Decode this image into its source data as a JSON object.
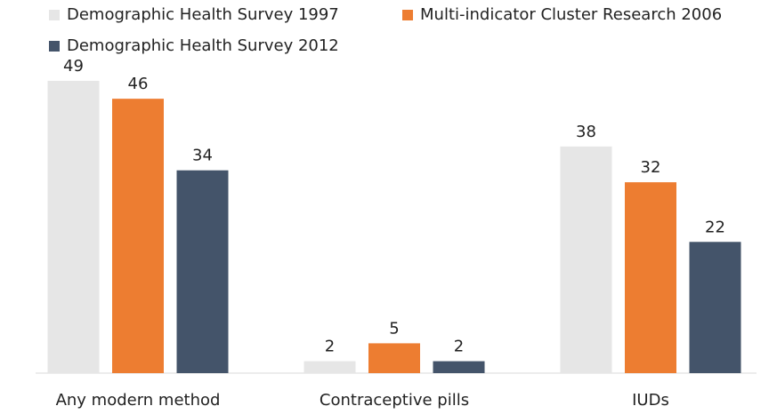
{
  "chart_data": {
    "type": "bar",
    "categories": [
      "Any modern method",
      "Contraceptive pills",
      "IUDs"
    ],
    "series": [
      {
        "name": "Demographic Health Survey 1997",
        "color": "#e6e6e6",
        "values": [
          49,
          2,
          38
        ]
      },
      {
        "name": "Multi-indicator Cluster Research 2006",
        "color": "#ed7d31",
        "values": [
          46,
          5,
          32
        ]
      },
      {
        "name": "Demographic Health Survey 2012",
        "color": "#44546a",
        "values": [
          34,
          2,
          22
        ]
      }
    ],
    "ylim": [
      0,
      49
    ]
  }
}
